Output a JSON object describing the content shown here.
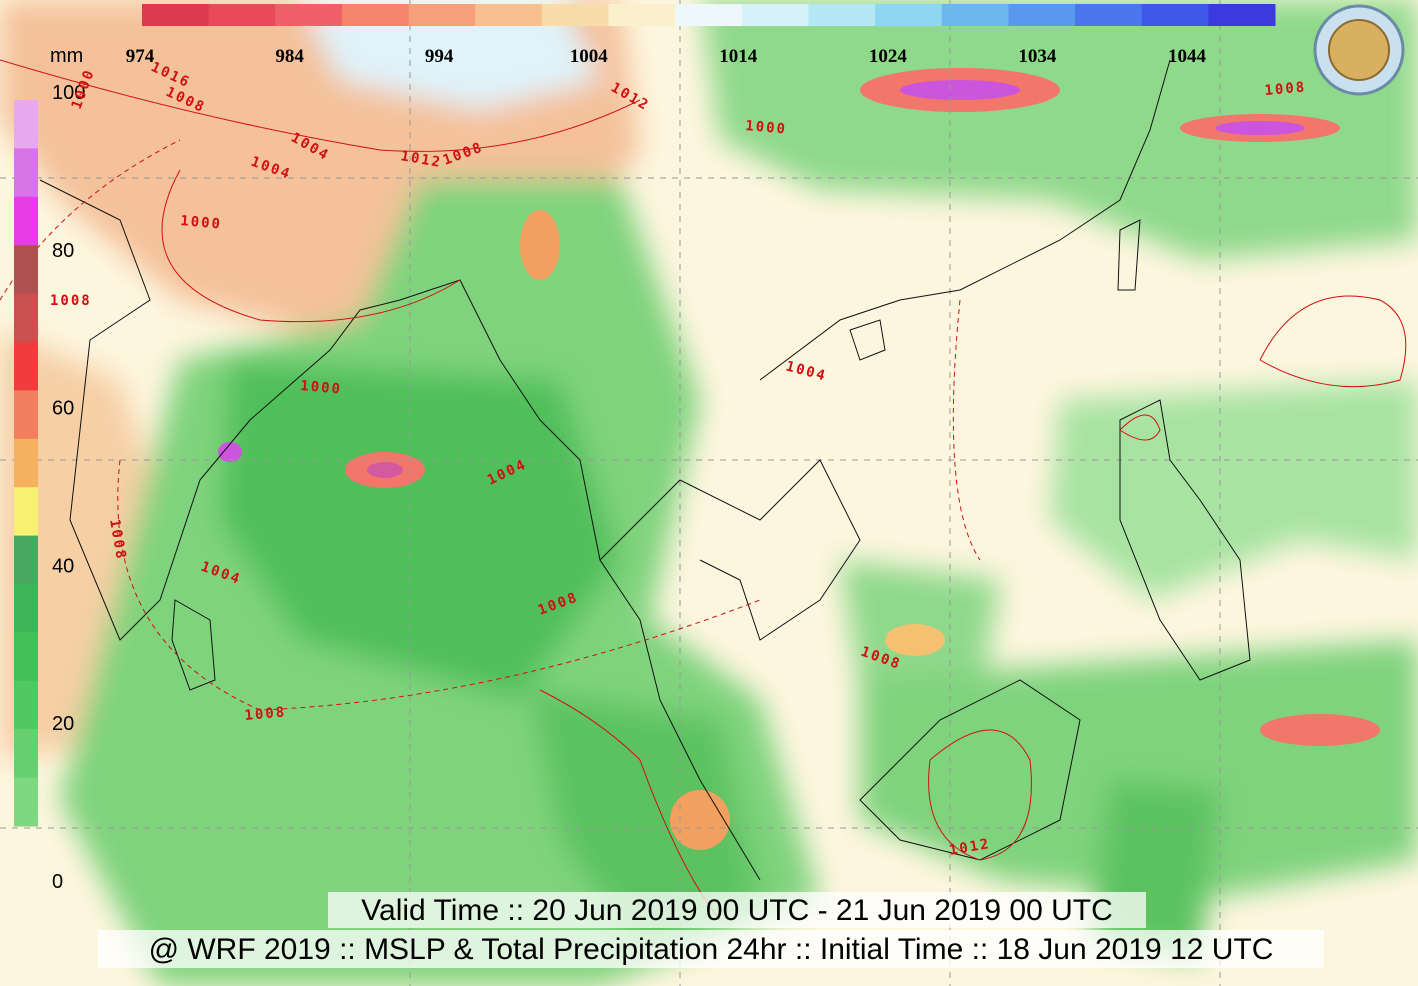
{
  "pressure_colorbar": {
    "ticks": [
      974,
      984,
      994,
      1004,
      1014,
      1024,
      1034,
      1044
    ]
  },
  "precip_colorbar": {
    "unit": "mm",
    "ticks": [
      100,
      80,
      60,
      40,
      20,
      0
    ]
  },
  "isobar_labels": [
    "1000",
    "1004",
    "1008",
    "1012",
    "1016",
    "1000",
    "1004",
    "1008",
    "1012",
    "1000",
    "1004",
    "1008",
    "1008",
    "1004",
    "1008",
    "1008",
    "1008",
    "1012",
    "1004",
    "1000",
    "1008"
  ],
  "valid_time": "Valid Time :: 20 Jun 2019 00 UTC - 21 Jun 2019 00 UTC",
  "title": "@ WRF 2019 :: MSLP & Total Precipitation 24hr :: Initial Time :: 18 Jun 2019 12 UTC"
}
